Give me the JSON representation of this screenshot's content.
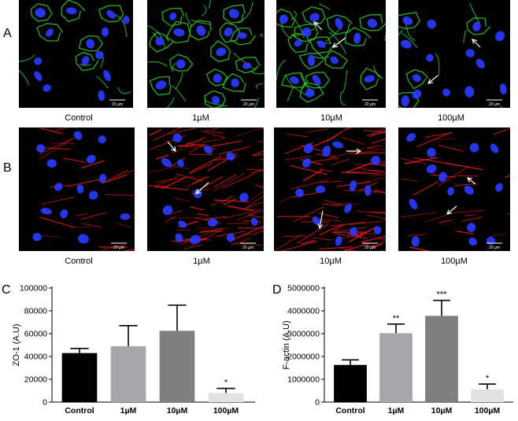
{
  "panels": {
    "A": "A",
    "B": "B",
    "C": "C",
    "D": "D"
  },
  "micrographs": {
    "row_a": {
      "stain_color": "#2ecc2e",
      "captions": [
        "Control",
        "1µM",
        "10µM",
        "100µM"
      ],
      "scale_bar": "20 µm"
    },
    "row_b": {
      "stain_color": "#e01a1a",
      "captions": [
        "Control",
        "1µM",
        "10µM",
        "100µM"
      ],
      "scale_bar": "20 µm"
    },
    "nucleus_color": "#2a3cff"
  },
  "chart_data": [
    {
      "type": "bar",
      "categories": [
        "Control",
        "1µM",
        "10µM",
        "100µM"
      ],
      "values": [
        43000,
        49000,
        62500,
        8000
      ],
      "errors": [
        4000,
        18000,
        22500,
        4000
      ],
      "significance": [
        "",
        "",
        "",
        "*"
      ],
      "bar_colors": [
        "#000000",
        "#a7a7ab",
        "#7f7f7f",
        "#e2e2e2"
      ],
      "ylabel": "ZO-1 (A.U)",
      "ylim": [
        0,
        100000
      ],
      "yticks": [
        "0",
        "20000",
        "40000",
        "60000",
        "80000",
        "100000"
      ],
      "ytick_values": [
        0,
        20000,
        40000,
        60000,
        80000,
        100000
      ],
      "grid": false
    },
    {
      "type": "bar",
      "categories": [
        "Control",
        "1µM",
        "10µM",
        "100µM"
      ],
      "values": [
        1630000,
        3020000,
        3780000,
        560000
      ],
      "errors": [
        220000,
        400000,
        680000,
        230000
      ],
      "significance": [
        "",
        "**",
        "***",
        "*"
      ],
      "bar_colors": [
        "#000000",
        "#a7a7ab",
        "#7f7f7f",
        "#e2e2e2"
      ],
      "ylabel": "F-actin (A.U)",
      "ylim": [
        0,
        5000000
      ],
      "yticks": [
        "0",
        "1000000",
        "2000000",
        "3000000",
        "4000000",
        "5000000"
      ],
      "ytick_values": [
        0,
        1000000,
        2000000,
        3000000,
        4000000,
        5000000
      ],
      "grid": false
    }
  ]
}
